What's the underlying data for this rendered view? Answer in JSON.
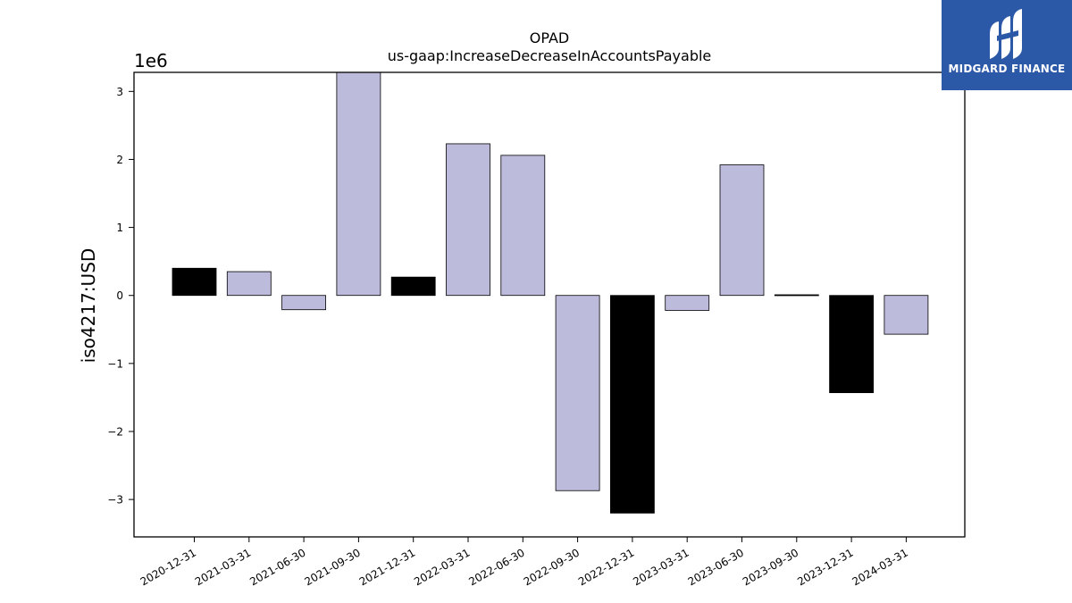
{
  "chart_data": {
    "type": "bar",
    "title": "OPAD",
    "subtitle": "us-gaap:IncreaseDecreaseInAccountsPayable",
    "xlabel": "",
    "ylabel": "iso4217:USD",
    "y_scale_label": "1e6",
    "ylim": [
      -3.55,
      3.28
    ],
    "yticks": [
      -3,
      -2,
      -1,
      0,
      1,
      2,
      3
    ],
    "ytick_labels": [
      "−3",
      "−2",
      "−1",
      "0",
      "1",
      "2",
      "3"
    ],
    "categories": [
      "2020-12-31",
      "2021-03-31",
      "2021-06-30",
      "2021-09-30",
      "2021-12-31",
      "2022-03-31",
      "2022-06-30",
      "2022-09-30",
      "2022-12-31",
      "2023-03-31",
      "2023-06-30",
      "2023-09-30",
      "2023-12-31",
      "2024-03-31"
    ],
    "values": [
      0.4,
      0.35,
      -0.21,
      3.28,
      0.27,
      2.23,
      2.06,
      -2.87,
      -3.2,
      -0.22,
      1.92,
      0.01,
      -1.43,
      -0.57
    ],
    "bar_colors": [
      "#000000",
      "#bdbbdb",
      "#bdbbdb",
      "#bdbbdb",
      "#000000",
      "#bdbbdb",
      "#bdbbdb",
      "#bdbbdb",
      "#000000",
      "#bdbbdb",
      "#bdbbdb",
      "#000000",
      "#000000",
      "#bdbbdb"
    ],
    "grid": false,
    "legend": "none"
  },
  "logo": {
    "text": "MIDGARD FINANCE",
    "background": "#2c58a8",
    "foreground": "#ffffff"
  }
}
